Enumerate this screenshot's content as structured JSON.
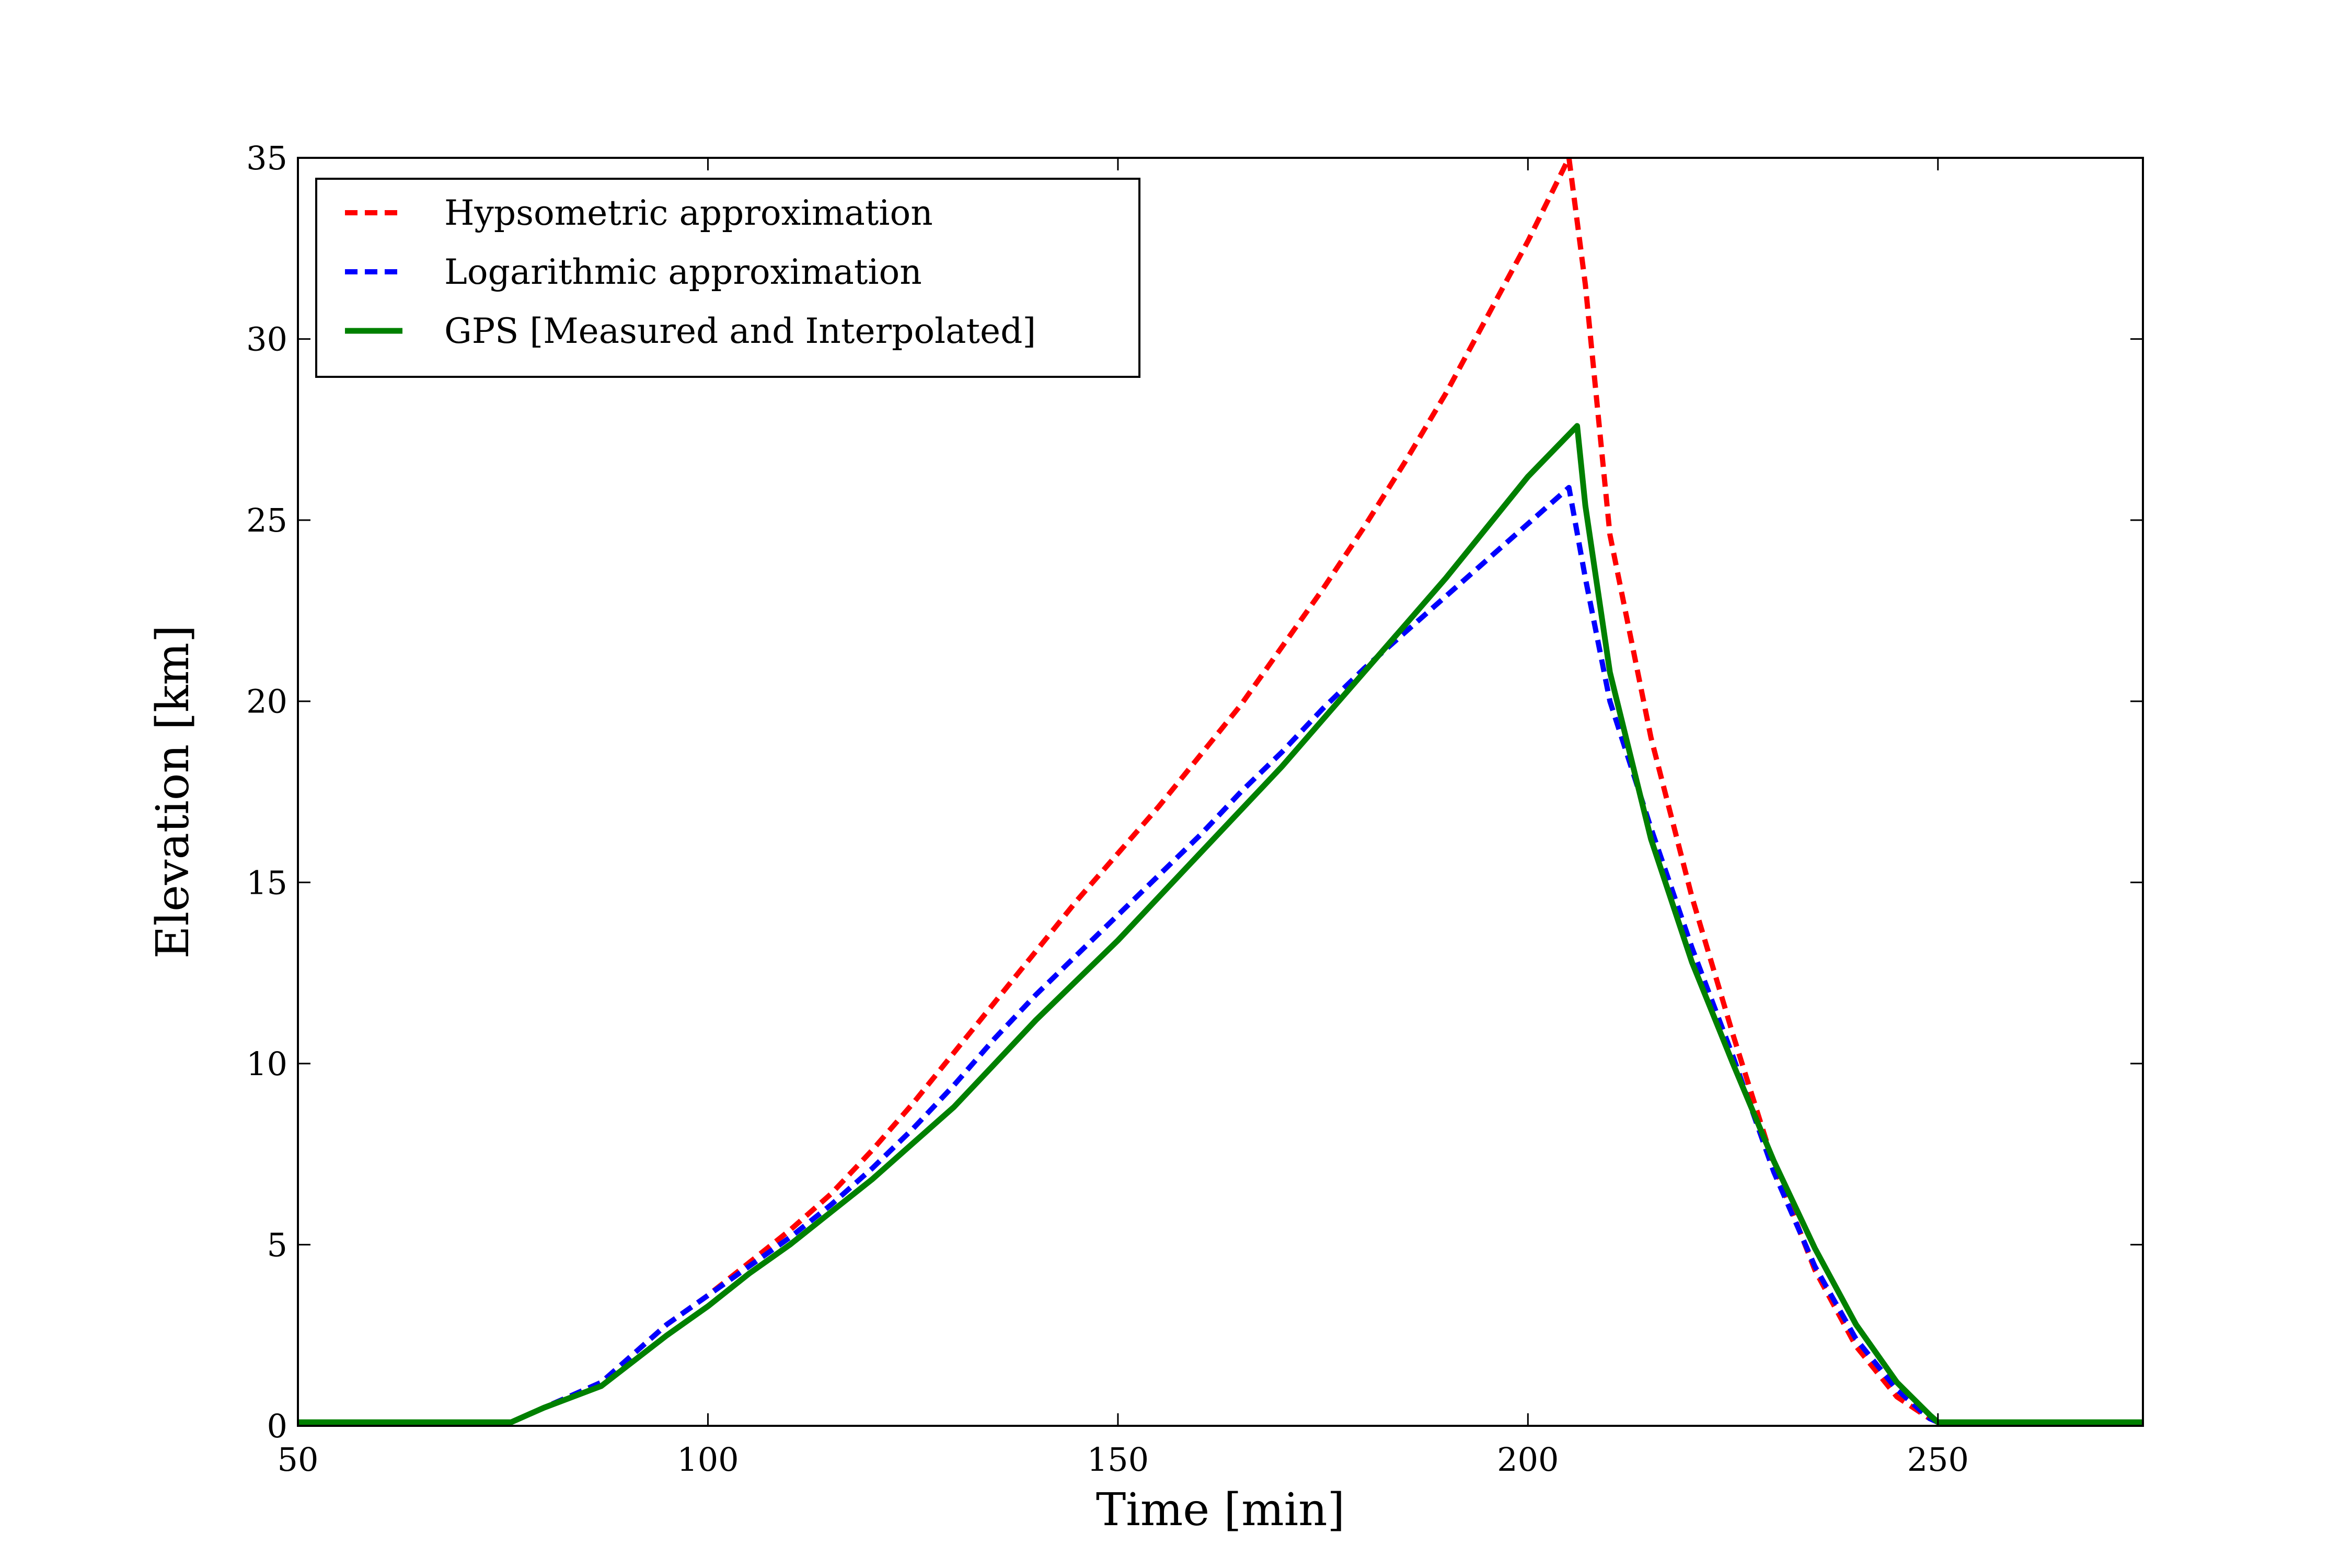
{
  "chart_data": {
    "type": "line",
    "title": "",
    "xlabel": "Time [min]",
    "ylabel": "Elevation [km]",
    "xlim": [
      50,
      275
    ],
    "ylim": [
      0,
      35
    ],
    "x_ticks": [
      50,
      100,
      150,
      200,
      250
    ],
    "y_ticks": [
      0,
      5,
      10,
      15,
      20,
      25,
      30,
      35
    ],
    "grid": false,
    "legend_position": "top-left",
    "series": [
      {
        "name": "Hypsometric approximation",
        "color": "#ff0000",
        "style": "dashed",
        "x": [
          50,
          60,
          70,
          76,
          80,
          87,
          95,
          100,
          105,
          110,
          115,
          120,
          125,
          130,
          135,
          140,
          145,
          150,
          155,
          160,
          165,
          170,
          175,
          180,
          185,
          190,
          195,
          200,
          205,
          207,
          210,
          215,
          220,
          225,
          230,
          235,
          240,
          245,
          249,
          250,
          260,
          275
        ],
        "y": [
          0.1,
          0.1,
          0.1,
          0.1,
          0.5,
          1.2,
          2.8,
          3.6,
          4.5,
          5.4,
          6.4,
          7.6,
          8.9,
          10.3,
          11.7,
          13.1,
          14.5,
          15.8,
          17.1,
          18.5,
          19.9,
          21.5,
          23.1,
          24.8,
          26.6,
          28.5,
          30.6,
          32.7,
          35.0,
          31.5,
          24.6,
          19.0,
          14.6,
          10.8,
          7.2,
          4.3,
          2.2,
          0.8,
          0.2,
          0.1,
          0.1,
          0.1
        ]
      },
      {
        "name": "Logarithmic approximation",
        "color": "#0000ff",
        "style": "dashed",
        "x": [
          50,
          60,
          70,
          76,
          80,
          87,
          95,
          100,
          105,
          110,
          115,
          120,
          125,
          130,
          135,
          140,
          145,
          150,
          155,
          160,
          165,
          170,
          175,
          180,
          185,
          190,
          195,
          200,
          205,
          207,
          210,
          215,
          220,
          225,
          230,
          235,
          240,
          245,
          249,
          250,
          260,
          275
        ],
        "y": [
          0.1,
          0.1,
          0.1,
          0.1,
          0.5,
          1.2,
          2.8,
          3.6,
          4.4,
          5.2,
          6.1,
          7.1,
          8.2,
          9.4,
          10.7,
          11.9,
          13.0,
          14.1,
          15.2,
          16.3,
          17.5,
          18.6,
          19.8,
          20.9,
          21.9,
          22.9,
          23.9,
          24.9,
          25.9,
          23.4,
          20.0,
          16.5,
          13.2,
          10.2,
          7.0,
          4.4,
          2.4,
          1.0,
          0.2,
          0.1,
          0.1,
          0.1
        ]
      },
      {
        "name": "GPS [Measured and Interpolated]",
        "color": "#008000",
        "style": "solid",
        "x": [
          50,
          60,
          70,
          76,
          80,
          87,
          95,
          100,
          105,
          110,
          115,
          120,
          125,
          130,
          135,
          140,
          145,
          150,
          155,
          160,
          165,
          170,
          175,
          180,
          185,
          190,
          195,
          200,
          206,
          207,
          210,
          215,
          220,
          225,
          230,
          235,
          240,
          245,
          249,
          250,
          260,
          275
        ],
        "y": [
          0.1,
          0.1,
          0.1,
          0.1,
          0.5,
          1.1,
          2.5,
          3.3,
          4.2,
          5.0,
          5.9,
          6.8,
          7.8,
          8.8,
          10.0,
          11.2,
          12.3,
          13.4,
          14.6,
          15.8,
          17.0,
          18.2,
          19.5,
          20.8,
          22.1,
          23.4,
          24.8,
          26.2,
          27.6,
          25.4,
          20.8,
          16.2,
          12.8,
          10.0,
          7.3,
          4.9,
          2.8,
          1.2,
          0.3,
          0.1,
          0.1,
          0.1
        ]
      }
    ]
  }
}
